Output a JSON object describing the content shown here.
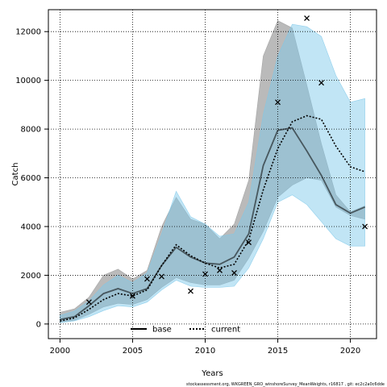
{
  "chart_data": {
    "type": "line",
    "title": "",
    "xlabel": "Years",
    "ylabel": "Catch",
    "xlim": [
      1999.2,
      2021.8
    ],
    "ylim": [
      -600,
      12900
    ],
    "x_ticks": [
      2000,
      2005,
      2010,
      2015,
      2020
    ],
    "y_ticks": [
      0,
      2000,
      4000,
      6000,
      8000,
      10000,
      12000
    ],
    "grid": true,
    "legend_position": "bottom-center",
    "series": [
      {
        "name": "base",
        "style": "solid",
        "color": "#000000",
        "band_color": "#9a9a9a",
        "x": [
          2000,
          2001,
          2002,
          2003,
          2004,
          2005,
          2006,
          2007,
          2008,
          2009,
          2010,
          2011,
          2012,
          2013,
          2014,
          2015,
          2016,
          2017,
          2018,
          2019,
          2020,
          2021
        ],
        "y": [
          180,
          300,
          750,
          1250,
          1450,
          1250,
          1450,
          2400,
          3150,
          2750,
          2500,
          2450,
          2750,
          3700,
          6500,
          7950,
          8050,
          7100,
          6100,
          4900,
          4550,
          4800
        ],
        "lower": [
          80,
          150,
          400,
          700,
          850,
          800,
          1000,
          1500,
          1900,
          1700,
          1600,
          1600,
          1800,
          2700,
          3800,
          5200,
          5700,
          6000,
          5900,
          4800,
          4450,
          4300
        ],
        "upper": [
          480,
          620,
          1100,
          2000,
          2250,
          1850,
          2200,
          4000,
          5200,
          4300,
          4100,
          3500,
          4100,
          5900,
          11000,
          12450,
          12150,
          9800,
          7400,
          5300,
          4600,
          4850
        ]
      },
      {
        "name": "current",
        "style": "dotted",
        "color": "#000000",
        "band_color": "#7ec8ea",
        "x": [
          2000,
          2001,
          2002,
          2003,
          2004,
          2005,
          2006,
          2007,
          2008,
          2009,
          2010,
          2011,
          2012,
          2013,
          2014,
          2015,
          2016,
          2017,
          2018,
          2019,
          2020,
          2021
        ],
        "y": [
          120,
          250,
          600,
          1000,
          1250,
          1150,
          1400,
          2400,
          3250,
          2800,
          2500,
          2300,
          2450,
          3450,
          5500,
          7200,
          8300,
          8550,
          8400,
          7300,
          6450,
          6250
        ],
        "lower": [
          50,
          130,
          300,
          550,
          750,
          700,
          900,
          1400,
          1800,
          1550,
          1500,
          1500,
          1550,
          2300,
          3500,
          5000,
          5300,
          4900,
          4200,
          3500,
          3200,
          3200
        ],
        "upper": [
          350,
          530,
          950,
          1600,
          2000,
          1700,
          2100,
          3700,
          5450,
          4400,
          4100,
          3600,
          3700,
          5000,
          8600,
          11000,
          12300,
          12200,
          11800,
          10200,
          9100,
          9250
        ]
      }
    ],
    "observations": {
      "marker": "x",
      "x": [
        2002,
        2005,
        2006,
        2007,
        2009,
        2010,
        2011,
        2012,
        2013,
        2015,
        2017,
        2018,
        2021
      ],
      "y": [
        900,
        1150,
        1850,
        1950,
        1350,
        2050,
        2200,
        2100,
        3350,
        9100,
        12550,
        9900,
        4000
      ]
    }
  },
  "footer_text": "stockassessment.org,  WKGREEN_GRO_winshoreSurvey_MeanWeights,  r16817 ,  git:  ec2c2a0c6dde"
}
